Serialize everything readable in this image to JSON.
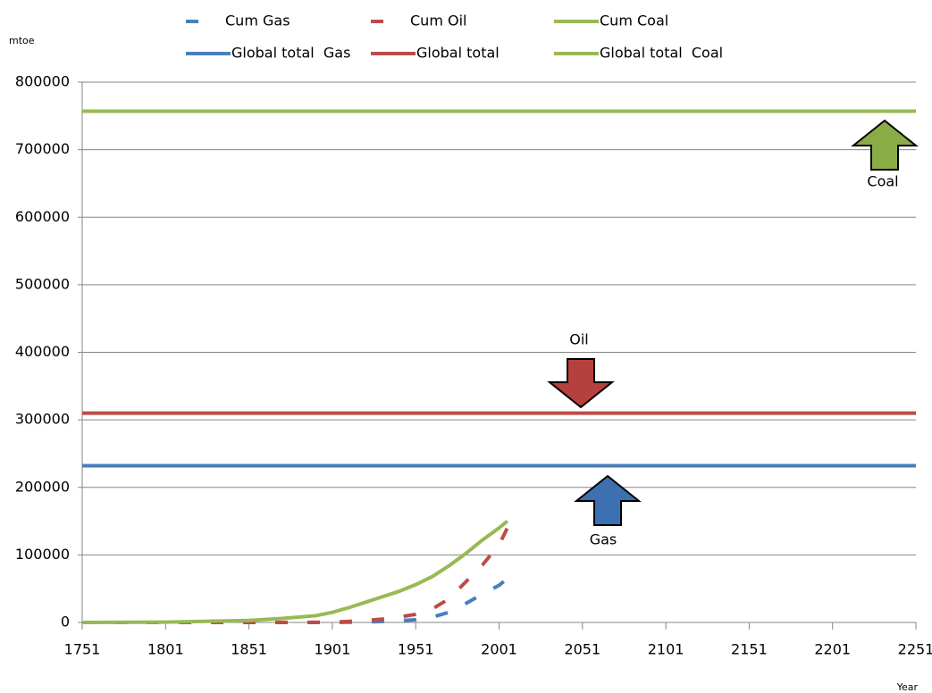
{
  "chart_data": {
    "type": "line",
    "y_label": "mtoe",
    "x_label": "Year",
    "xlim": [
      1751,
      2251
    ],
    "xticks": [
      1751,
      1801,
      1851,
      1901,
      1951,
      2001,
      2051,
      2101,
      2151,
      2201,
      2251
    ],
    "ylim": [
      0,
      800000
    ],
    "yticks": [
      0,
      100000,
      200000,
      300000,
      400000,
      500000,
      600000,
      700000,
      800000
    ],
    "grid": true,
    "series": [
      {
        "name": "Cum Gas",
        "color": "#4a7ebb",
        "dashed": true,
        "x": [
          1751,
          1801,
          1851,
          1871,
          1891,
          1901,
          1911,
          1921,
          1931,
          1941,
          1951,
          1961,
          1971,
          1981,
          1991,
          2001,
          2006
        ],
        "values": [
          0,
          0,
          0,
          0,
          50,
          100,
          300,
          700,
          1500,
          2500,
          4000,
          8000,
          15000,
          28000,
          42000,
          55000,
          65000
        ]
      },
      {
        "name": "Cum Oil",
        "color": "#be4b48",
        "dashed": true,
        "x": [
          1751,
          1801,
          1851,
          1871,
          1891,
          1901,
          1911,
          1921,
          1931,
          1941,
          1951,
          1961,
          1971,
          1981,
          1991,
          2001,
          2006
        ],
        "values": [
          0,
          0,
          0,
          10,
          200,
          500,
          1500,
          3000,
          5000,
          8000,
          12000,
          20000,
          35000,
          60000,
          85000,
          115000,
          140000
        ]
      },
      {
        "name": "Cum Coal",
        "color": "#98b954",
        "dashed": false,
        "x": [
          1751,
          1801,
          1851,
          1871,
          1891,
          1901,
          1911,
          1921,
          1931,
          1941,
          1951,
          1961,
          1971,
          1981,
          1991,
          2001,
          2006
        ],
        "values": [
          0,
          500,
          3000,
          6000,
          10000,
          15000,
          22000,
          30000,
          38000,
          46000,
          56000,
          68000,
          84000,
          102000,
          122000,
          140000,
          150000
        ]
      },
      {
        "name": "Global total  Gas",
        "color": "#4a7ebb",
        "dashed": false,
        "x": [
          1751,
          2251
        ],
        "values": [
          232000,
          232000
        ]
      },
      {
        "name": "Global total",
        "color": "#be4b48",
        "dashed": false,
        "x": [
          1751,
          2251
        ],
        "values": [
          310000,
          310000
        ]
      },
      {
        "name": "Global total  Coal",
        "color": "#98b954",
        "dashed": false,
        "x": [
          1751,
          2251
        ],
        "values": [
          757000,
          757000
        ]
      }
    ],
    "annotations": [
      "Coal",
      "Oil",
      "Gas"
    ]
  }
}
